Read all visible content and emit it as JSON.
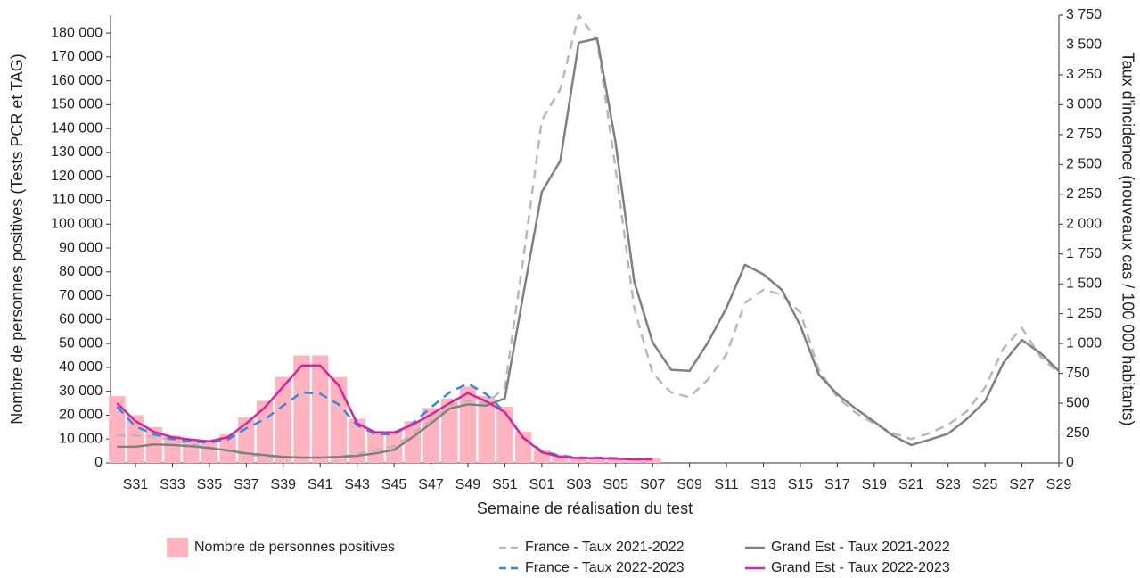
{
  "chart_data": {
    "type": "bar",
    "x_label": "Semaine de réalisation du test",
    "y_label": "Nombre de personnes positives (Tests PCR et TAG)",
    "y2_label": "Taux d'incidence (nouveaux cas / 100 000 habitants)",
    "categories": [
      null,
      "S31",
      null,
      "S33",
      null,
      "S35",
      null,
      "S37",
      null,
      "S39",
      null,
      "S41",
      null,
      "S43",
      null,
      "S45",
      null,
      "S47",
      null,
      "S49",
      null,
      "S51",
      null,
      "S01",
      null,
      "S03",
      null,
      "S05",
      null,
      "S07",
      null,
      "S09",
      null,
      "S11",
      null,
      "S13",
      null,
      "S15",
      null,
      "S17",
      null,
      "S19",
      null,
      "S21",
      null,
      "S23",
      null,
      "S25",
      null,
      "S27",
      null,
      "S29"
    ],
    "ylim": [
      0,
      187500
    ],
    "yticks": [
      0,
      {
        "value": 10000,
        "label": "10 000"
      },
      {
        "value": 20000,
        "label": "20 000"
      },
      {
        "value": 30000,
        "label": "30 000"
      },
      {
        "value": 40000,
        "label": "40 000"
      },
      {
        "value": 50000,
        "label": "50 000"
      },
      {
        "value": 60000,
        "label": "60 000"
      },
      {
        "value": 70000,
        "label": "70 000"
      },
      {
        "value": 80000,
        "label": "80 000"
      },
      {
        "value": 90000,
        "label": "90 000"
      },
      {
        "value": 100000,
        "label": "100 000"
      },
      {
        "value": 110000,
        "label": "110 000"
      },
      {
        "value": 120000,
        "label": "120 000"
      },
      {
        "value": 130000,
        "label": "130 000"
      },
      {
        "value": 140000,
        "label": "140 000"
      },
      {
        "value": 150000,
        "label": "150 000"
      },
      {
        "value": 160000,
        "label": "160 000"
      },
      {
        "value": 170000,
        "label": "170 000"
      },
      {
        "value": 180000,
        "label": "180 000"
      }
    ],
    "y2lim": [
      0,
      3750
    ],
    "y2ticks": [
      0,
      250,
      500,
      750,
      {
        "value": 1000,
        "label": "1 000"
      },
      {
        "value": 1250,
        "label": "1 250"
      },
      {
        "value": 1500,
        "label": "1 500"
      },
      {
        "value": 1750,
        "label": "1 750"
      },
      {
        "value": 2000,
        "label": "2 000"
      },
      {
        "value": 2250,
        "label": "2 250"
      },
      {
        "value": 2500,
        "label": "2 500"
      },
      {
        "value": 2750,
        "label": "2 750"
      },
      {
        "value": 3000,
        "label": "3 000"
      },
      {
        "value": 3250,
        "label": "3 250"
      },
      {
        "value": 3500,
        "label": "3 500"
      },
      {
        "value": 3750,
        "label": "3 750"
      }
    ],
    "series": [
      {
        "name": "Nombre de personnes positives",
        "type": "bar",
        "color": "#ffb3bf",
        "values": [
          28000,
          20000,
          15000,
          11500,
          10000,
          9000,
          12000,
          19000,
          26000,
          36000,
          45000,
          45000,
          36000,
          18500,
          13500,
          13500,
          17500,
          23000,
          27000,
          32000,
          28000,
          23500,
          13000,
          5500,
          3500,
          2500,
          2200,
          2000,
          1800,
          1800,
          null,
          null,
          null,
          null,
          null,
          null,
          null,
          null,
          null,
          null,
          null,
          null,
          null,
          null,
          null,
          null,
          null,
          null,
          null,
          null,
          null,
          null
        ]
      },
      {
        "name": "France - Taux 2021-2022",
        "type": "line",
        "axis": "y2",
        "dashed": true,
        "color": "#b8b8b8",
        "values": [
          230,
          230,
          220,
          190,
          160,
          130,
          100,
          75,
          50,
          45,
          40,
          45,
          50,
          75,
          105,
          140,
          240,
          360,
          480,
          520,
          500,
          630,
          1710,
          2870,
          3130,
          3750,
          3540,
          2460,
          1300,
          750,
          590,
          550,
          700,
          910,
          1340,
          1450,
          1410,
          1260,
          780,
          550,
          420,
          330,
          250,
          200,
          250,
          320,
          430,
          630,
          960,
          1130,
          890,
          750
        ]
      },
      {
        "name": "France - Taux 2022-2023",
        "type": "line",
        "axis": "y2",
        "dashed": true,
        "color": "#2b8cee",
        "values": [
          470,
          305,
          240,
          200,
          180,
          170,
          195,
          290,
          365,
          480,
          590,
          580,
          490,
          315,
          240,
          240,
          330,
          465,
          590,
          665,
          575,
          425,
          210,
          100,
          60,
          45,
          45,
          40,
          30,
          30,
          null,
          null,
          null,
          null,
          null,
          null,
          null,
          null,
          null,
          null,
          null,
          null,
          null,
          null,
          null,
          null,
          null,
          null,
          null,
          null,
          null,
          null
        ]
      },
      {
        "name": "Grand Est - Taux 2021-2022",
        "type": "line",
        "axis": "y2",
        "dashed": false,
        "color": "#808080",
        "values": [
          135,
          135,
          155,
          150,
          140,
          125,
          105,
          80,
          65,
          50,
          45,
          45,
          50,
          60,
          80,
          110,
          215,
          330,
          455,
          490,
          480,
          540,
          1410,
          2270,
          2530,
          3520,
          3555,
          2680,
          1520,
          1010,
          780,
          770,
          1010,
          1300,
          1660,
          1580,
          1450,
          1150,
          740,
          575,
          455,
          345,
          230,
          150,
          195,
          245,
          365,
          515,
          840,
          1030,
          920,
          770
        ]
      },
      {
        "name": "Grand Est - Taux 2022-2023",
        "type": "line",
        "axis": "y2",
        "dashed": false,
        "color": "#d6249a",
        "values": [
          500,
          350,
          260,
          215,
          195,
          180,
          215,
          330,
          465,
          640,
          815,
          815,
          650,
          330,
          255,
          255,
          320,
          405,
          500,
          585,
          515,
          425,
          210,
          90,
          50,
          40,
          40,
          35,
          30,
          30,
          null,
          null,
          null,
          null,
          null,
          null,
          null,
          null,
          null,
          null,
          null,
          null,
          null,
          null,
          null,
          null,
          null,
          null,
          null,
          null,
          null,
          null
        ]
      }
    ]
  }
}
